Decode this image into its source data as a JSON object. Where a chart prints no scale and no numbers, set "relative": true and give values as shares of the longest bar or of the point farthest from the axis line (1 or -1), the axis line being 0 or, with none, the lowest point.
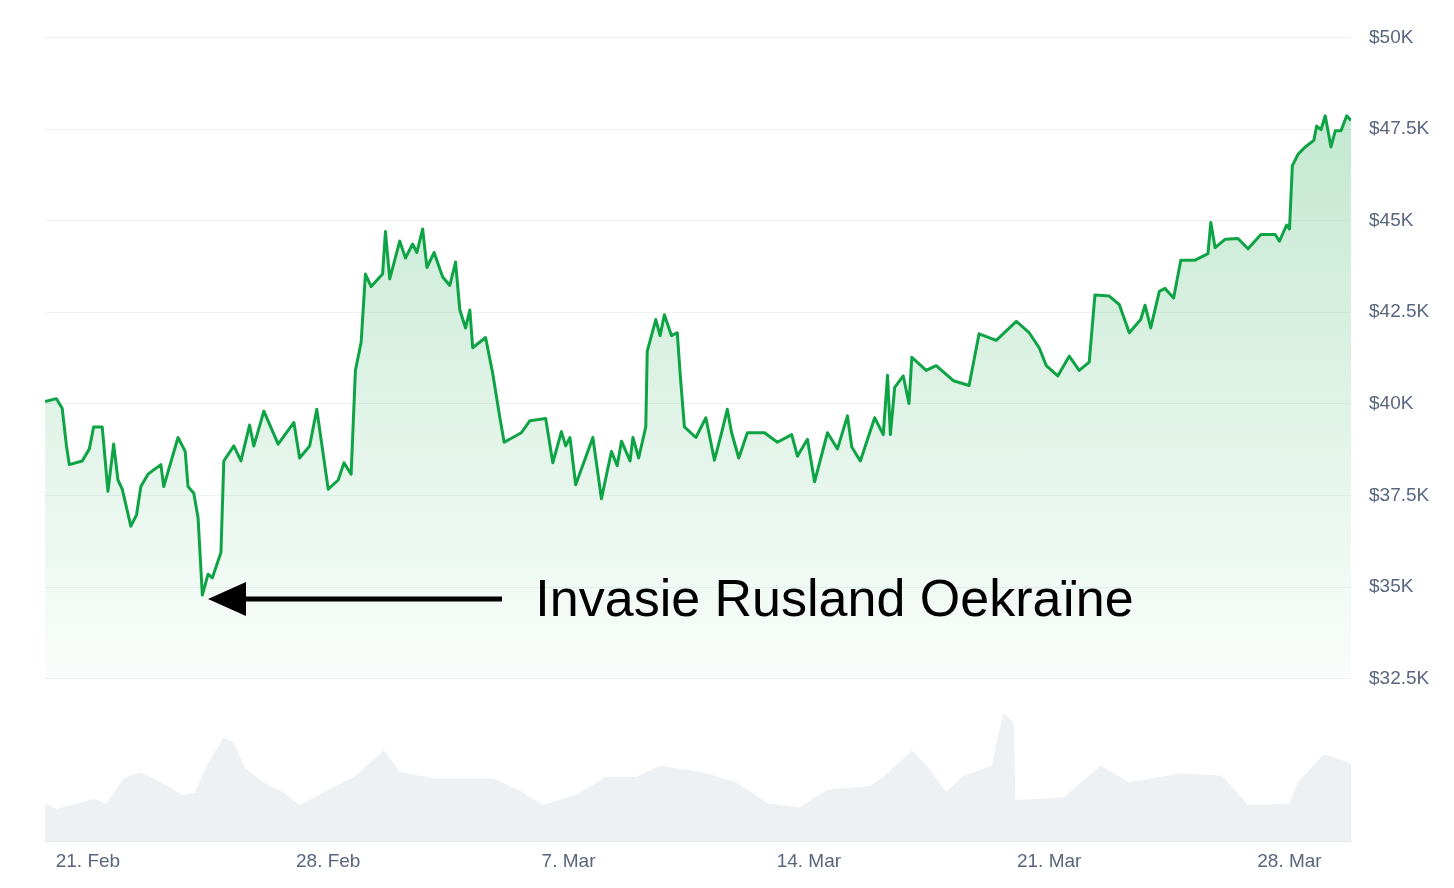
{
  "chart_data": [
    {
      "type": "area",
      "marker": "none",
      "grid": "y",
      "legend": false,
      "tick_labels": "y",
      "xlim": [
        "--02-19T18:00",
        "--03-29T19:00"
      ],
      "ylim": [
        32500,
        50000
      ],
      "yticks": [
        {
          "value": 32500,
          "label": "$32.5K"
        },
        {
          "value": 35000,
          "label": "$35K"
        },
        {
          "value": 37500,
          "label": "$37.5K"
        },
        {
          "value": 40000,
          "label": "$40K"
        },
        {
          "value": 42500,
          "label": "$42.5K"
        },
        {
          "value": 45000,
          "label": "$45K"
        },
        {
          "value": 47500,
          "label": "$47.5K"
        },
        {
          "value": 50000,
          "label": "$50K"
        }
      ],
      "annotations": [
        "Invasie Rusland Oekraïne"
      ],
      "series": [
        {
          "color": "#0ea445",
          "x": [
            "--02-19T18:00",
            "--02-20T02:00",
            "--02-20T06:00",
            "--02-20T09:00",
            "--02-20T11:00",
            "--02-20T20:00",
            "--02-21T01:00",
            "--02-21T04:00",
            "--02-21T10:00",
            "--02-21T14:00",
            "--02-21T18:00",
            "--02-21T21:00",
            "--02-22T00:00",
            "--02-22T06:00",
            "--02-22T10:00",
            "--02-22T13:00",
            "--02-22T18:00",
            "--02-23T03:00",
            "--02-23T05:00",
            "--02-23T15:00",
            "--02-23T20:00",
            "--02-23T22:00",
            "--02-24T02:00",
            "--02-24T05:00",
            "--02-24T08:00",
            "--02-24T12:00",
            "--02-24T15:00",
            "--02-24T21:00",
            "--02-24T23:00",
            "--02-25T06:00",
            "--02-25T11:00",
            "--02-25T17:00",
            "--02-25T20:00",
            "--02-26T03:00",
            "--02-26T13:00",
            "--02-27T00:00",
            "--02-27T04:00",
            "--02-27T11:00",
            "--02-27T16:00",
            "--02-27T19:00",
            "--02-28T00:00",
            "--02-28T07:00",
            "--02-28T11:00",
            "--02-28T16:00",
            "--02-28T19:00",
            "--02-28T23:00",
            "--03-01T02:00",
            "--03-01T06:00",
            "--03-01T14:00",
            "--03-01T16:00",
            "--03-01T19:00",
            "--03-02T02:00",
            "--03-02T06:00",
            "--03-02T11:00",
            "--03-02T14:00",
            "--03-02T18:00",
            "--03-02T21:00",
            "--03-03T02:00",
            "--03-03T08:00",
            "--03-03T13:00",
            "--03-03T17:00",
            "--03-03T20:00",
            "--03-04T00:00",
            "--03-04T03:00",
            "--03-04T05:00",
            "--03-04T14:00",
            "--03-04T19:00",
            "--03-05T00:00",
            "--03-05T03:00",
            "--03-05T15:00",
            "--03-05T21:00",
            "--03-06T08:00",
            "--03-06T13:00",
            "--03-06T19:00",
            "--03-06T22:00",
            "--03-07T01:00",
            "--03-07T05:00",
            "--03-07T17:00",
            "--03-07T23:00",
            "--03-08T06:00",
            "--03-08T10:00",
            "--03-08T13:00",
            "--03-08T19:00",
            "--03-08T21:00",
            "--03-09T01:00",
            "--03-09T06:00",
            "--03-09T07:00",
            "--03-09T13:00",
            "--03-09T16:00",
            "--03-09T19:00",
            "--03-10T00:00",
            "--03-10T04:00",
            "--03-10T06:00",
            "--03-10T09:00",
            "--03-10T17:00",
            "--03-11T00:00",
            "--03-11T06:00",
            "--03-11T11:00",
            "--03-11T15:00",
            "--03-11T18:00",
            "--03-11T23:00",
            "--03-12T05:00",
            "--03-12T17:00",
            "--03-13T02:00",
            "--03-13T12:00",
            "--03-13T16:00",
            "--03-13T23:00",
            "--03-14T04:00",
            "--03-14T13:00",
            "--03-14T20:00",
            "--03-15T03:00",
            "--03-15T06:00",
            "--03-15T12:00",
            "--03-15T22:00",
            "--03-16T04:00",
            "--03-16T07:00",
            "--03-16T09:00",
            "--03-16T12:00",
            "--03-16T18:00",
            "--03-16T22:00",
            "--03-17T00:00",
            "--03-17T10:00",
            "--03-17T17:00",
            "--03-18T05:00",
            "--03-18T16:00",
            "--03-18T23:00",
            "--03-19T11:00",
            "--03-20T01:00",
            "--03-20T10:00",
            "--03-20T17:00",
            "--03-20T22:00",
            "--03-21T06:00",
            "--03-21T14:00",
            "--03-21T21:00",
            "--03-22T04:00",
            "--03-22T08:00",
            "--03-22T18:00",
            "--03-23T01:00",
            "--03-23T08:00",
            "--03-23T16:00",
            "--03-23T19:00",
            "--03-23T23:00",
            "--03-24T05:00",
            "--03-24T09:00",
            "--03-24T15:00",
            "--03-24T20:00",
            "--03-25T06:00",
            "--03-25T15:00",
            "--03-25T17:00",
            "--03-25T20:00",
            "--03-26T03:00",
            "--03-26T12:00",
            "--03-26T19:00",
            "--03-27T04:00",
            "--03-27T14:00",
            "--03-27T17:00",
            "--03-27T22:00",
            "--03-28T00:00",
            "--03-28T02:00",
            "--03-28T06:00",
            "--03-28T11:00",
            "--03-28T17:00",
            "--03-28T19:00",
            "--03-28T22:00",
            "--03-29T01:00",
            "--03-29T05:00",
            "--03-29T08:00",
            "--03-29T12:00",
            "--03-29T16:00",
            "--03-29T19:00"
          ],
          "values": [
            40060,
            40140,
            39880,
            38850,
            38340,
            38440,
            38770,
            39370,
            39370,
            37610,
            38900,
            37920,
            37670,
            36660,
            36970,
            37740,
            38080,
            38340,
            37740,
            39080,
            38700,
            37740,
            37560,
            36890,
            34780,
            35350,
            35250,
            35940,
            38440,
            38850,
            38440,
            39420,
            38850,
            39800,
            38900,
            39490,
            38520,
            38850,
            39850,
            39030,
            37670,
            37920,
            38390,
            38080,
            40910,
            41680,
            43540,
            43200,
            43540,
            44700,
            43410,
            44440,
            43980,
            44360,
            44130,
            44770,
            43720,
            44130,
            43460,
            43230,
            43870,
            42560,
            42070,
            42560,
            41530,
            41810,
            40830,
            39620,
            38950,
            39210,
            39540,
            39600,
            38390,
            39240,
            38850,
            39080,
            37790,
            39080,
            37410,
            38700,
            38310,
            38980,
            38440,
            39080,
            38520,
            39370,
            41430,
            42300,
            41860,
            42430,
            41860,
            41940,
            40830,
            39370,
            39080,
            39620,
            38460,
            39210,
            39850,
            39210,
            38520,
            39210,
            39210,
            38950,
            39160,
            38570,
            39030,
            37870,
            39210,
            38770,
            39670,
            38820,
            38440,
            39620,
            39160,
            40780,
            39160,
            40450,
            40760,
            40010,
            41270,
            40910,
            41040,
            40630,
            40500,
            41910,
            41730,
            42250,
            41940,
            41530,
            41040,
            40760,
            41300,
            40910,
            41140,
            42970,
            42940,
            42710,
            41940,
            42300,
            42690,
            42070,
            43070,
            43150,
            42890,
            43920,
            43920,
            44100,
            44950,
            44260,
            44490,
            44510,
            44230,
            44620,
            44620,
            44440,
            44880,
            44770,
            46500,
            46810,
            47010,
            47190,
            47580,
            47480,
            47860,
            47010,
            47450,
            47450,
            47860,
            47730
          ]
        }
      ]
    },
    {
      "type": "area",
      "relative": true,
      "marker": "none",
      "grid": false,
      "legend": false,
      "tick_labels": "x",
      "xlim": [
        "--02-19T18:00",
        "--03-29T19:00"
      ],
      "xticks": [
        {
          "value": "--02-21",
          "label": "21. Feb"
        },
        {
          "value": "--02-28",
          "label": "28. Feb"
        },
        {
          "value": "--03-07",
          "label": "7. Mar"
        },
        {
          "value": "--03-14",
          "label": "14. Mar"
        },
        {
          "value": "--03-21",
          "label": "21. Mar"
        },
        {
          "value": "--03-28",
          "label": "28. Mar"
        }
      ],
      "series": [
        {
          "color": "#eef1f4",
          "x": [
            "--02-19T18:00",
            "--02-20T02:00",
            "--02-20T13:00",
            "--02-21T04:00",
            "--02-21T13:00",
            "--02-22T01:00",
            "--02-22T13:00",
            "--02-23T06:00",
            "--02-23T18:00",
            "--02-24T03:00",
            "--02-24T12:00",
            "--02-24T23:00",
            "--02-25T05:00",
            "--02-25T14:00",
            "--02-26T02:00",
            "--02-26T17:00",
            "--02-27T04:00",
            "--02-27T21:00",
            "--02-28T19:00",
            "--03-01T15:00",
            "--03-02T02:00",
            "--03-03T02:00",
            "--03-04T01:00",
            "--03-04T19:00",
            "--03-05T13:00",
            "--03-06T06:00",
            "--03-07T05:00",
            "--03-08T02:00",
            "--03-08T23:00",
            "--03-09T16:00",
            "--03-10T21:00",
            "--03-11T21:00",
            "--03-12T20:00",
            "--03-13T17:00",
            "--03-14T13:00",
            "--03-15T19:00",
            "--03-16T07:00",
            "--03-17T00:00",
            "--03-17T12:00",
            "--03-18T00:00",
            "--03-18T12:00",
            "--03-19T08:00",
            "--03-19T16:00",
            "--03-19T23:00",
            "--03-20T00:00",
            "--03-21T10:00",
            "--03-22T12:00",
            "--03-23T08:00",
            "--03-24T20:00",
            "--03-26T01:00",
            "--03-26T19:00",
            "--03-28T00:00",
            "--03-28T06:00",
            "--03-29T00:00",
            "--03-29T19:00"
          ],
          "values": [
            0.29,
            0.25,
            0.28,
            0.33,
            0.29,
            0.49,
            0.54,
            0.44,
            0.36,
            0.38,
            0.61,
            0.81,
            0.78,
            0.57,
            0.46,
            0.38,
            0.28,
            0.38,
            0.51,
            0.71,
            0.54,
            0.49,
            0.49,
            0.49,
            0.4,
            0.28,
            0.36,
            0.5,
            0.5,
            0.59,
            0.54,
            0.46,
            0.29,
            0.26,
            0.4,
            0.43,
            0.53,
            0.71,
            0.57,
            0.38,
            0.51,
            0.59,
            1,
            0.93,
            0.32,
            0.34,
            0.59,
            0.46,
            0.53,
            0.51,
            0.28,
            0.29,
            0.46,
            0.68,
            0.61
          ]
        }
      ]
    }
  ]
}
